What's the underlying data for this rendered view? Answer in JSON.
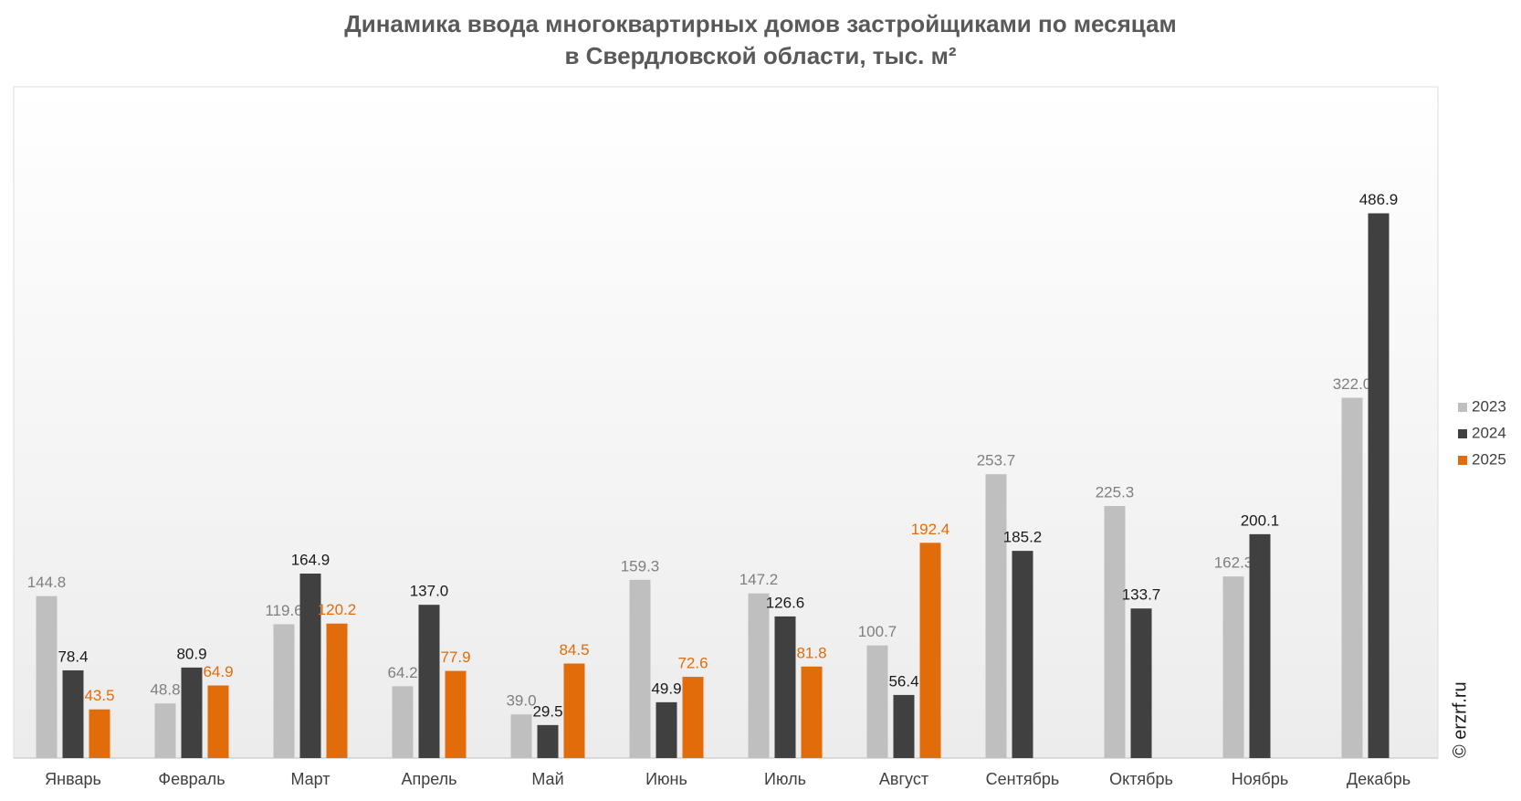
{
  "chart_data": {
    "type": "bar",
    "title": [
      "Динамика ввода многоквартирных домов застройщиками по месяцам",
      "в Свердловской области, тыс. м²"
    ],
    "categories": [
      "Январь",
      "Февраль",
      "Март",
      "Апрель",
      "Май",
      "Июнь",
      "Июль",
      "Август",
      "Сентябрь",
      "Октябрь",
      "Ноябрь",
      "Декабрь"
    ],
    "series": [
      {
        "name": "2023",
        "color": "#bfbfbf",
        "label_color": "#7f7f7f",
        "values": [
          144.8,
          48.8,
          119.6,
          64.2,
          39.0,
          159.3,
          147.2,
          100.7,
          253.7,
          225.3,
          162.3,
          322.0
        ],
        "value_labels": [
          "144.8",
          "48.8",
          "119.6",
          "64.2",
          "39.0",
          "159.3",
          "147.2",
          "100.7",
          "253.7",
          "225.3",
          "162.3",
          "322.0"
        ]
      },
      {
        "name": "2024",
        "color": "#404040",
        "label_color": "#1a1a1a",
        "values": [
          78.4,
          80.9,
          164.9,
          137.0,
          29.5,
          49.9,
          126.6,
          56.4,
          185.2,
          133.7,
          200.1,
          486.9
        ],
        "value_labels": [
          "78.4",
          "80.9",
          "164.9",
          "137.0",
          "29.5",
          "49.9",
          "126.6",
          "56.4",
          "185.2",
          "133.7",
          "200.1",
          "486.9"
        ]
      },
      {
        "name": "2025",
        "color": "#e36c0a",
        "label_color": "#e36c0a",
        "values": [
          43.5,
          64.9,
          120.2,
          77.9,
          84.5,
          72.6,
          81.8,
          192.4,
          null,
          null,
          null,
          null
        ],
        "value_labels": [
          "43.5",
          "64.9",
          "120.2",
          "77.9",
          "84.5",
          "72.6",
          "81.8",
          "192.4",
          null,
          null,
          null,
          null
        ]
      }
    ],
    "ylim": [
      0,
      600
    ],
    "watermark": "© erzrf.ru"
  }
}
